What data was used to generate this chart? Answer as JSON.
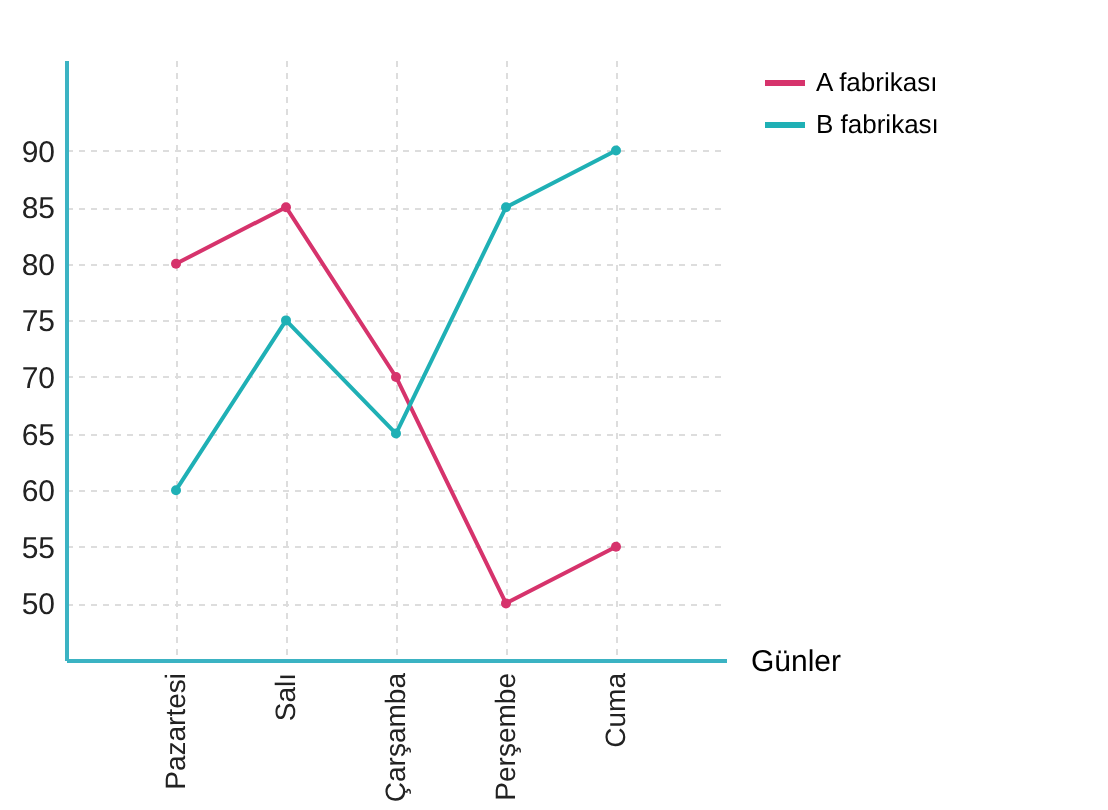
{
  "chart_data": {
    "type": "line",
    "xlabel": "Günler",
    "categories": [
      "Pazartesi",
      "Salı",
      "Çarşamba",
      "Perşembe",
      "Cuma"
    ],
    "series": [
      {
        "name": "A fabrikası",
        "color": "#d6336c",
        "values": [
          80,
          85,
          70,
          50,
          55
        ]
      },
      {
        "name": "B fabrikası",
        "color": "#1fb0b5",
        "values": [
          60,
          75,
          65,
          85,
          90
        ]
      }
    ],
    "ylim": [
      45,
      98
    ],
    "yticks": [
      50,
      55,
      60,
      65,
      70,
      75,
      80,
      85,
      90
    ],
    "grid": true,
    "legend": "top right",
    "marker": "circle",
    "line_style": "solid"
  }
}
